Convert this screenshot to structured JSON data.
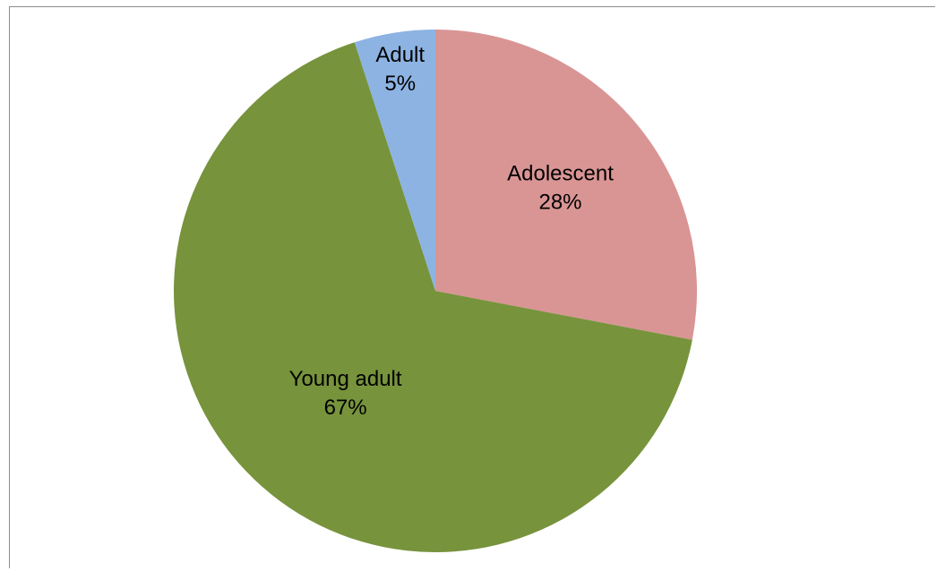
{
  "chart_data": {
    "type": "pie",
    "title": "",
    "start_angle_deg": 0,
    "direction": "clockwise",
    "slices": [
      {
        "label": "Adolescent",
        "value": 28,
        "pct_label": "28%",
        "color": "#d99594"
      },
      {
        "label": "Young adult",
        "value": 67,
        "pct_label": "67%",
        "color": "#77933c"
      },
      {
        "label": "Adult",
        "value": 5,
        "pct_label": "5%",
        "color": "#8db3e2"
      }
    ],
    "legend": "none",
    "data_labels": "inside"
  }
}
